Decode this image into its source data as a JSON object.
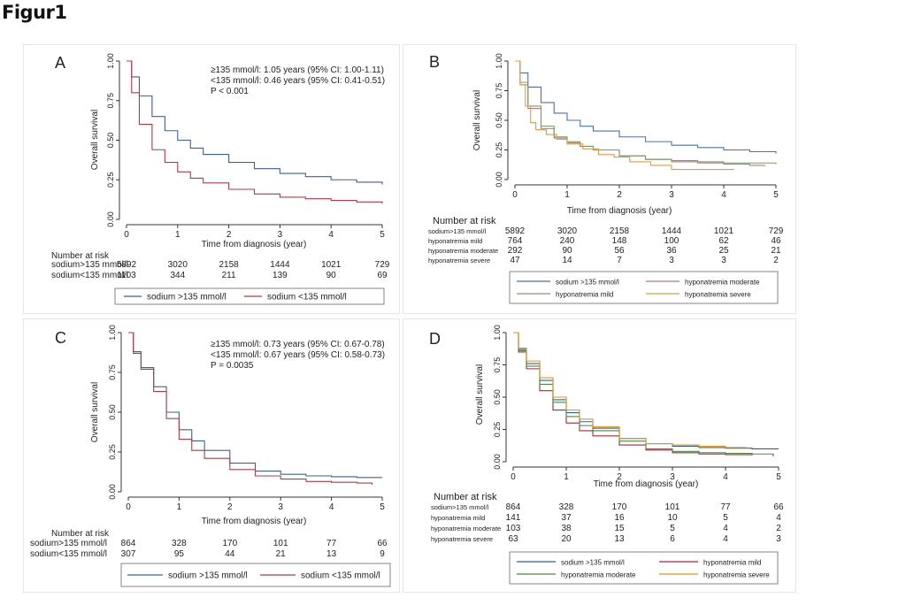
{
  "figure_title": "Figur1",
  "chart_data": [
    {
      "id": "A",
      "type": "line",
      "panel_letter": "A",
      "xlabel": "Time from diagnosis (year)",
      "ylabel": "Overall survival",
      "xlim": [
        0,
        5
      ],
      "ylim": [
        0,
        1
      ],
      "xticks": [
        "0",
        "1",
        "2",
        "3",
        "4",
        "5"
      ],
      "yticks": [
        "0.00",
        "0.25",
        "0.50",
        "0.75",
        "1.00"
      ],
      "grid": false,
      "annotations": [
        "≥135 mmol/l: 1.05 years (95% CI: 1.00-1.11)",
        "<135 mmol/l: 0.46 years (95% CI: 0.41-0.51)",
        "P < 0.001"
      ],
      "series": [
        {
          "name": "sodium >135 mmol/l",
          "color": "#3b5ea8",
          "x": [
            0,
            0.1,
            0.25,
            0.5,
            0.75,
            1,
            1.25,
            1.5,
            2,
            2.5,
            3,
            3.5,
            4,
            4.5,
            5
          ],
          "y": [
            1,
            0.9,
            0.78,
            0.65,
            0.56,
            0.5,
            0.45,
            0.41,
            0.36,
            0.32,
            0.29,
            0.27,
            0.25,
            0.235,
            0.22
          ]
        },
        {
          "name": "sodium <135 mmol/l",
          "color": "#b03a48",
          "x": [
            0,
            0.1,
            0.25,
            0.5,
            0.75,
            1,
            1.25,
            1.5,
            2,
            2.5,
            3,
            3.5,
            4,
            4.5,
            5
          ],
          "y": [
            1,
            0.8,
            0.6,
            0.44,
            0.36,
            0.3,
            0.26,
            0.23,
            0.19,
            0.16,
            0.14,
            0.13,
            0.12,
            0.11,
            0.1
          ]
        }
      ],
      "risk_table": {
        "header": "Number at risk",
        "rows": [
          {
            "label": "sodium>135 mmol/l",
            "values": [
              "5892",
              "3020",
              "2158",
              "1444",
              "1021",
              "729"
            ]
          },
          {
            "label": "sodium<135 mmol/l",
            "values": [
              "1103",
              "344",
              "211",
              "139",
              "90",
              "69"
            ]
          }
        ]
      },
      "legend": [
        "sodium >135 mmol/l",
        "sodium <135 mmol/l"
      ]
    },
    {
      "id": "B",
      "type": "line",
      "panel_letter": "B",
      "xlabel": "Time from diagnosis (year)",
      "ylabel": "Overall survival",
      "xlim": [
        0,
        5
      ],
      "ylim": [
        0,
        1
      ],
      "xticks": [
        "0",
        "1",
        "2",
        "3",
        "4",
        "5"
      ],
      "yticks": [
        "0.00",
        "0.25",
        "0.50",
        "0.75",
        "1.00"
      ],
      "grid": false,
      "annotations": [],
      "series": [
        {
          "name": "sodium >135 mmol/l",
          "color": "#4a6fb5",
          "x": [
            0,
            0.1,
            0.25,
            0.5,
            0.75,
            1,
            1.25,
            1.5,
            2,
            2.5,
            3,
            3.5,
            4,
            4.5,
            5
          ],
          "y": [
            1,
            0.9,
            0.78,
            0.65,
            0.56,
            0.5,
            0.45,
            0.41,
            0.36,
            0.32,
            0.29,
            0.27,
            0.25,
            0.235,
            0.22
          ]
        },
        {
          "name": "hyponatremia moderate",
          "color": "#b87a7a",
          "x": [
            0,
            0.1,
            0.25,
            0.5,
            0.75,
            1,
            1.25,
            1.5,
            2,
            2.5,
            3,
            3.5,
            4,
            4.5,
            4.8
          ],
          "y": [
            1,
            0.8,
            0.6,
            0.43,
            0.35,
            0.31,
            0.28,
            0.25,
            0.2,
            0.17,
            0.15,
            0.14,
            0.13,
            0.12,
            0.12
          ]
        },
        {
          "name": "hyponatremia mild",
          "color": "#7a9a6a",
          "x": [
            0,
            0.1,
            0.25,
            0.5,
            0.75,
            1,
            1.25,
            1.5,
            2,
            2.5,
            3,
            3.5,
            4,
            4.5,
            5
          ],
          "y": [
            1,
            0.82,
            0.62,
            0.45,
            0.36,
            0.32,
            0.28,
            0.25,
            0.2,
            0.17,
            0.16,
            0.15,
            0.14,
            0.14,
            0.13
          ]
        },
        {
          "name": "hyponatremia severe",
          "color": "#e89a3a",
          "x": [
            0,
            0.1,
            0.2,
            0.3,
            0.4,
            0.6,
            0.8,
            1,
            1.3,
            1.6,
            1.9,
            2.2,
            2.6,
            3,
            3.4,
            4.2
          ],
          "y": [
            1,
            0.8,
            0.62,
            0.48,
            0.42,
            0.38,
            0.34,
            0.3,
            0.26,
            0.21,
            0.19,
            0.15,
            0.12,
            0.085,
            0.085,
            0.085
          ]
        }
      ],
      "risk_table": {
        "header": "Number at risk",
        "rows": [
          {
            "label": "sodium>135 mmol/l",
            "values": [
              "5892",
              "3020",
              "2158",
              "1444",
              "1021",
              "729"
            ]
          },
          {
            "label": "hyponatremia mild",
            "values": [
              "764",
              "240",
              "148",
              "100",
              "62",
              "46"
            ]
          },
          {
            "label": "hyponatremia moderate",
            "values": [
              "292",
              "90",
              "56",
              "36",
              "25",
              "21"
            ]
          },
          {
            "label": "hyponatremia severe",
            "values": [
              "47",
              "14",
              "7",
              "3",
              "3",
              "2"
            ]
          }
        ]
      },
      "legend": [
        "sodium >135 mmol/l",
        "hyponatremia moderate",
        "hyponatremia mild",
        "hyponatremia severe"
      ]
    },
    {
      "id": "C",
      "type": "line",
      "panel_letter": "C",
      "xlabel": "Time from diagnosis (year)",
      "ylabel": "Overall survival",
      "xlim": [
        0,
        5
      ],
      "ylim": [
        0,
        1
      ],
      "xticks": [
        "0",
        "1",
        "2",
        "3",
        "4",
        "5"
      ],
      "yticks": [
        "0.00",
        "0.25",
        "0.50",
        "0.75",
        "1.00"
      ],
      "grid": false,
      "annotations": [
        "≥135 mmol/l: 0.73 years (95% CI: 0.67-0.78)",
        "<135 mmol/l: 0.67 years (95% CI: 0.58-0.73)",
        "P = 0.0035"
      ],
      "series": [
        {
          "name": "sodium >135 mmol/l",
          "color": "#3b5ea8",
          "x": [
            0,
            0.1,
            0.25,
            0.5,
            0.75,
            1,
            1.25,
            1.5,
            2,
            2.5,
            3,
            3.5,
            4,
            4.5,
            5
          ],
          "y": [
            1,
            0.88,
            0.78,
            0.66,
            0.5,
            0.39,
            0.32,
            0.26,
            0.18,
            0.13,
            0.11,
            0.1,
            0.095,
            0.09,
            0.09
          ]
        },
        {
          "name": "sodium <135 mmol/l",
          "color": "#b03a48",
          "x": [
            0,
            0.1,
            0.25,
            0.5,
            0.75,
            1,
            1.25,
            1.5,
            2,
            2.5,
            3,
            3.5,
            4,
            4.5,
            4.8
          ],
          "y": [
            1,
            0.87,
            0.77,
            0.63,
            0.46,
            0.33,
            0.26,
            0.21,
            0.14,
            0.1,
            0.08,
            0.065,
            0.06,
            0.055,
            0.045
          ]
        }
      ],
      "risk_table": {
        "header": "Number at risk",
        "rows": [
          {
            "label": "sodium>135 mmol/l",
            "values": [
              "864",
              "328",
              "170",
              "101",
              "77",
              "66"
            ]
          },
          {
            "label": "sodium<135 mmol/l",
            "values": [
              "307",
              "95",
              "44",
              "21",
              "13",
              "9"
            ]
          }
        ]
      },
      "legend": [
        "sodium >135 mmol/l",
        "sodium <135 mmol/l"
      ]
    },
    {
      "id": "D",
      "type": "line",
      "panel_letter": "D",
      "xlabel": "Time from diagnosis (year)",
      "ylabel": "Overall survival",
      "xlim": [
        0,
        5
      ],
      "ylim": [
        0,
        1
      ],
      "xticks": [
        "0",
        "1",
        "2",
        "3",
        "4",
        "5"
      ],
      "yticks": [
        "0.00",
        "0.25",
        "0.50",
        "0.75",
        "1.00"
      ],
      "grid": false,
      "annotations": [],
      "series": [
        {
          "name": "sodium >135 mmol/l",
          "color": "#2a5fa8",
          "x": [
            0,
            0.1,
            0.25,
            0.5,
            0.75,
            1,
            1.25,
            1.5,
            2,
            2.5,
            3,
            3.5,
            4,
            4.5,
            5
          ],
          "y": [
            1,
            0.87,
            0.76,
            0.63,
            0.48,
            0.38,
            0.31,
            0.26,
            0.18,
            0.14,
            0.12,
            0.11,
            0.105,
            0.1,
            0.1
          ]
        },
        {
          "name": "hyponatremia mild",
          "color": "#a8283a",
          "x": [
            0,
            0.1,
            0.25,
            0.5,
            0.75,
            1,
            1.25,
            1.5,
            2,
            2.5,
            3,
            3.5,
            4,
            4.5
          ],
          "y": [
            1,
            0.85,
            0.72,
            0.55,
            0.4,
            0.3,
            0.24,
            0.2,
            0.13,
            0.09,
            0.07,
            0.06,
            0.055,
            0.05
          ]
        },
        {
          "name": "hyponatremia moderate",
          "color": "#4f8a3a",
          "x": [
            0,
            0.1,
            0.25,
            0.5,
            0.75,
            1,
            1.25,
            1.5,
            2,
            2.5,
            3,
            3.5,
            4,
            4.5,
            4.9
          ],
          "y": [
            1,
            0.86,
            0.74,
            0.6,
            0.46,
            0.35,
            0.28,
            0.24,
            0.16,
            0.1,
            0.08,
            0.07,
            0.065,
            0.06,
            0.04
          ]
        },
        {
          "name": "hyponatremia severe",
          "color": "#e8941a",
          "x": [
            0,
            0.1,
            0.25,
            0.5,
            0.75,
            1,
            1.25,
            1.5,
            2,
            2.5,
            3,
            3.5,
            4,
            4.4
          ],
          "y": [
            1,
            0.88,
            0.78,
            0.65,
            0.5,
            0.4,
            0.33,
            0.27,
            0.18,
            0.14,
            0.13,
            0.12,
            0.11,
            0.1
          ]
        }
      ],
      "risk_table": {
        "header": "Number at risk",
        "rows": [
          {
            "label": "sodium>135 mmol/l",
            "values": [
              "864",
              "328",
              "170",
              "101",
              "77",
              "66"
            ]
          },
          {
            "label": "hyponatremia mild",
            "values": [
              "141",
              "37",
              "16",
              "10",
              "5",
              "4"
            ]
          },
          {
            "label": "hyponatremia moderate",
            "values": [
              "103",
              "38",
              "15",
              "5",
              "4",
              "2"
            ]
          },
          {
            "label": "hyponatremia severe",
            "values": [
              "63",
              "20",
              "13",
              "6",
              "4",
              "3"
            ]
          }
        ]
      },
      "legend": [
        "sodium >135 mmol/l",
        "hyponatremia mild",
        "hyponatremia moderate",
        "hyponatremia severe"
      ]
    }
  ]
}
